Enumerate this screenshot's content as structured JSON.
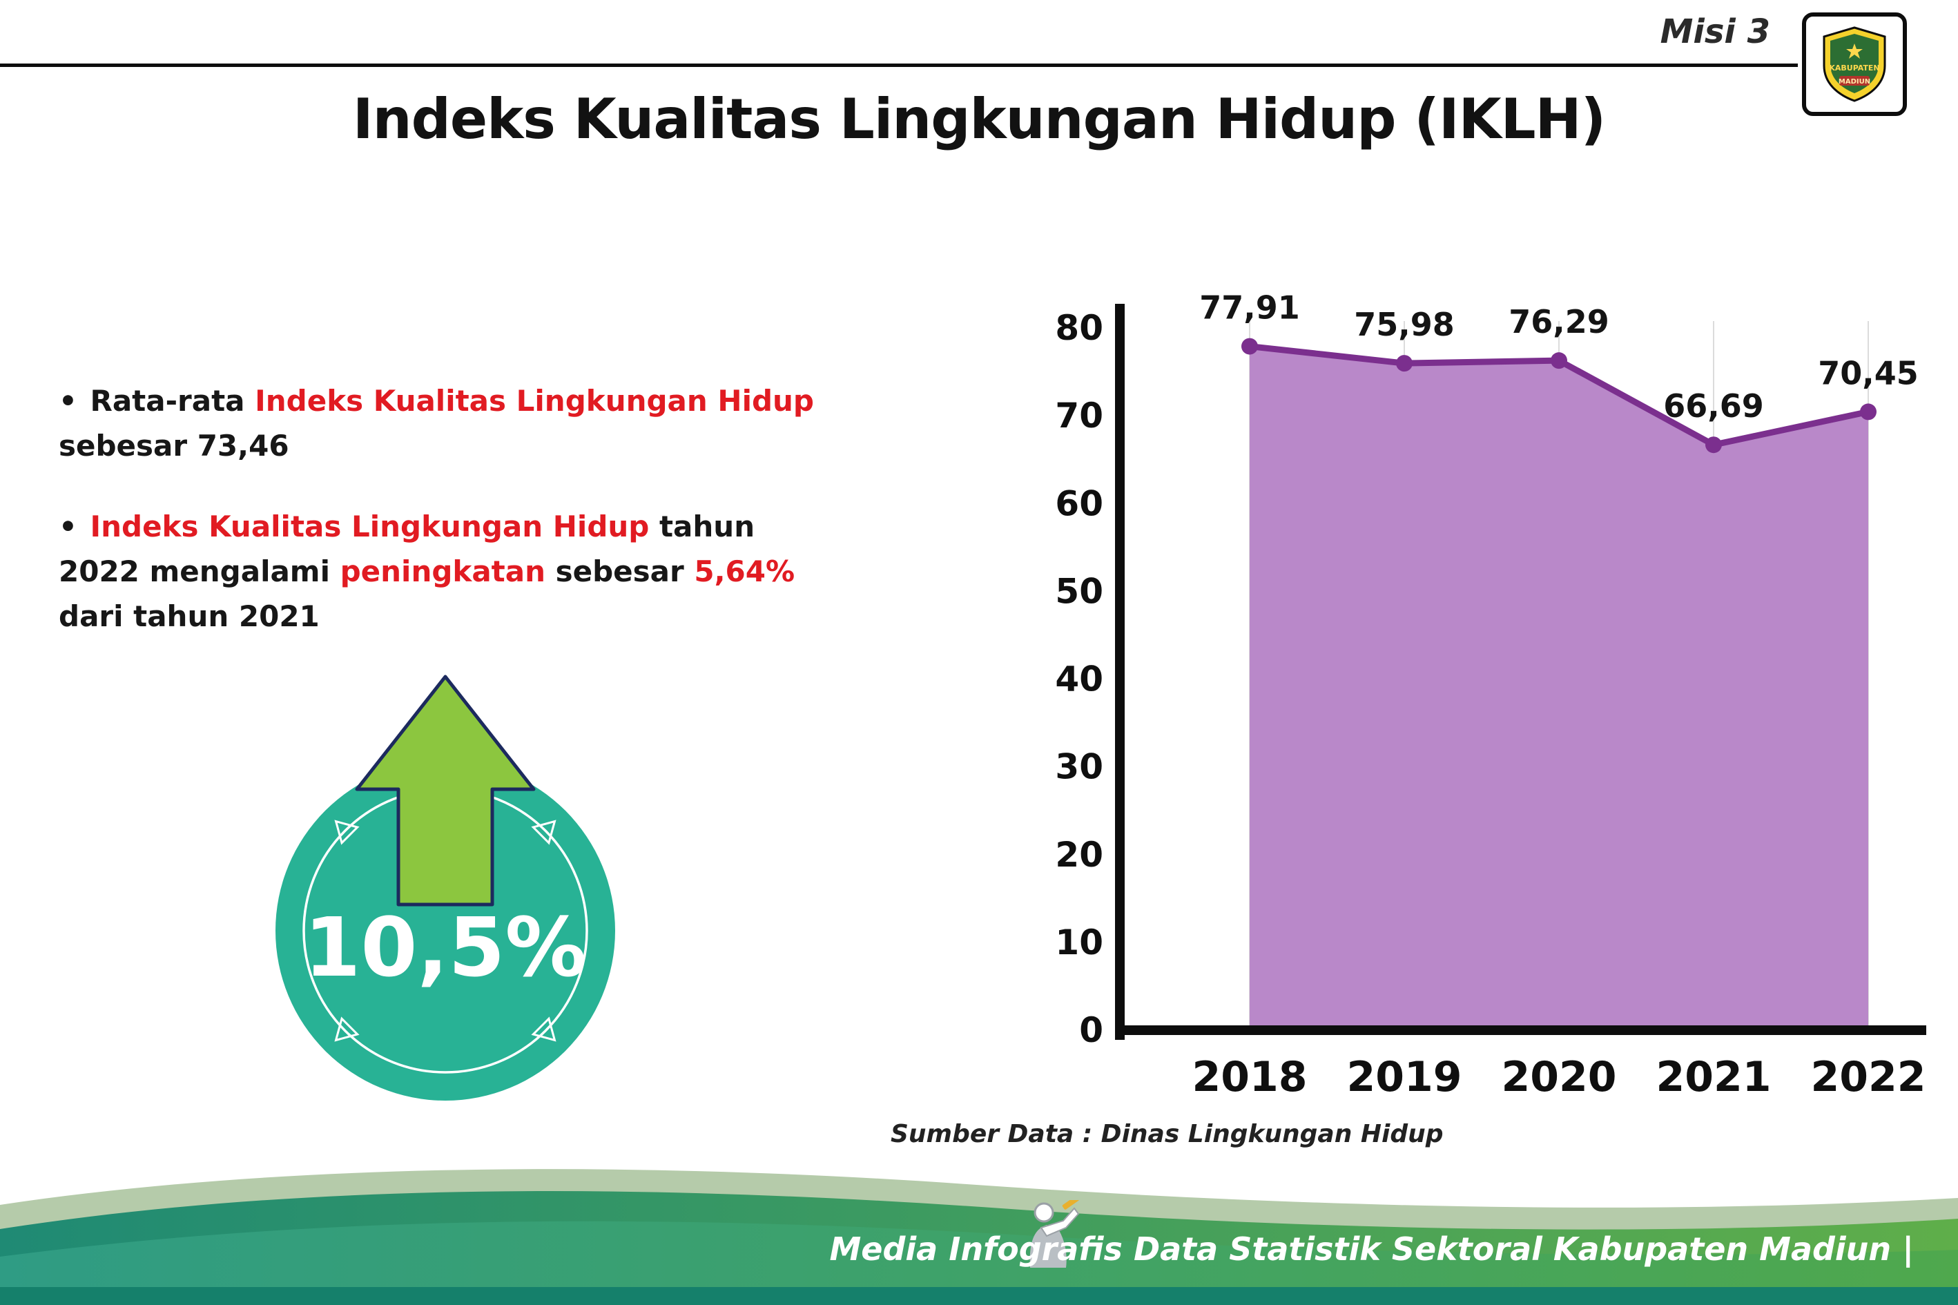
{
  "header": {
    "misi": "Misi 3",
    "title": "Indeks Kualitas Lingkungan Hidup (IKLH)"
  },
  "logo": {
    "line1": "KABUPATEN",
    "line2": "MADIUN"
  },
  "bullets": {
    "b1_pre": "Rata-rata ",
    "b1_red": "Indeks Kualitas Lingkungan Hidup",
    "b1_post": " sebesar 73,46",
    "b2_red1": "Indeks Kualitas Lingkungan Hidup",
    "b2_black1": " tahun 2022 mengalami ",
    "b2_red2": "peningkatan",
    "b2_black2": " sebesar ",
    "b2_red3": "5,64%",
    "b2_black3": " dari tahun 2021"
  },
  "badge": {
    "value": "10,5%",
    "circle_color": "#28b295",
    "arrow_color": "#8cc63f"
  },
  "chart_data": {
    "type": "area",
    "title": "Indeks Kualitas Lingkungan Hidup (IKLH)",
    "categories": [
      "2018",
      "2019",
      "2020",
      "2021",
      "2022"
    ],
    "values": [
      77.91,
      75.98,
      76.29,
      66.69,
      70.45
    ],
    "point_labels": [
      "77,91",
      "75,98",
      "76,29",
      "66,69",
      "70,45"
    ],
    "ylim": [
      0,
      80
    ],
    "ytick_step": 10,
    "grid": "vertical",
    "legend": "none",
    "colors": {
      "area": "#b988c9",
      "line": "#7b2f8e"
    },
    "source": "Sumber Data : Dinas Lingkungan Hidup"
  },
  "footer": {
    "credit": "Media Infografis Data Statistik Sektoral Kabupaten Madiun |"
  },
  "colors": {
    "accent_red": "#e11b22",
    "footer_teal": "#23836e",
    "footer_green": "#4aa64b",
    "footer_sage": "#b5cbaa",
    "footer_bottom_bar": "#15806b"
  }
}
